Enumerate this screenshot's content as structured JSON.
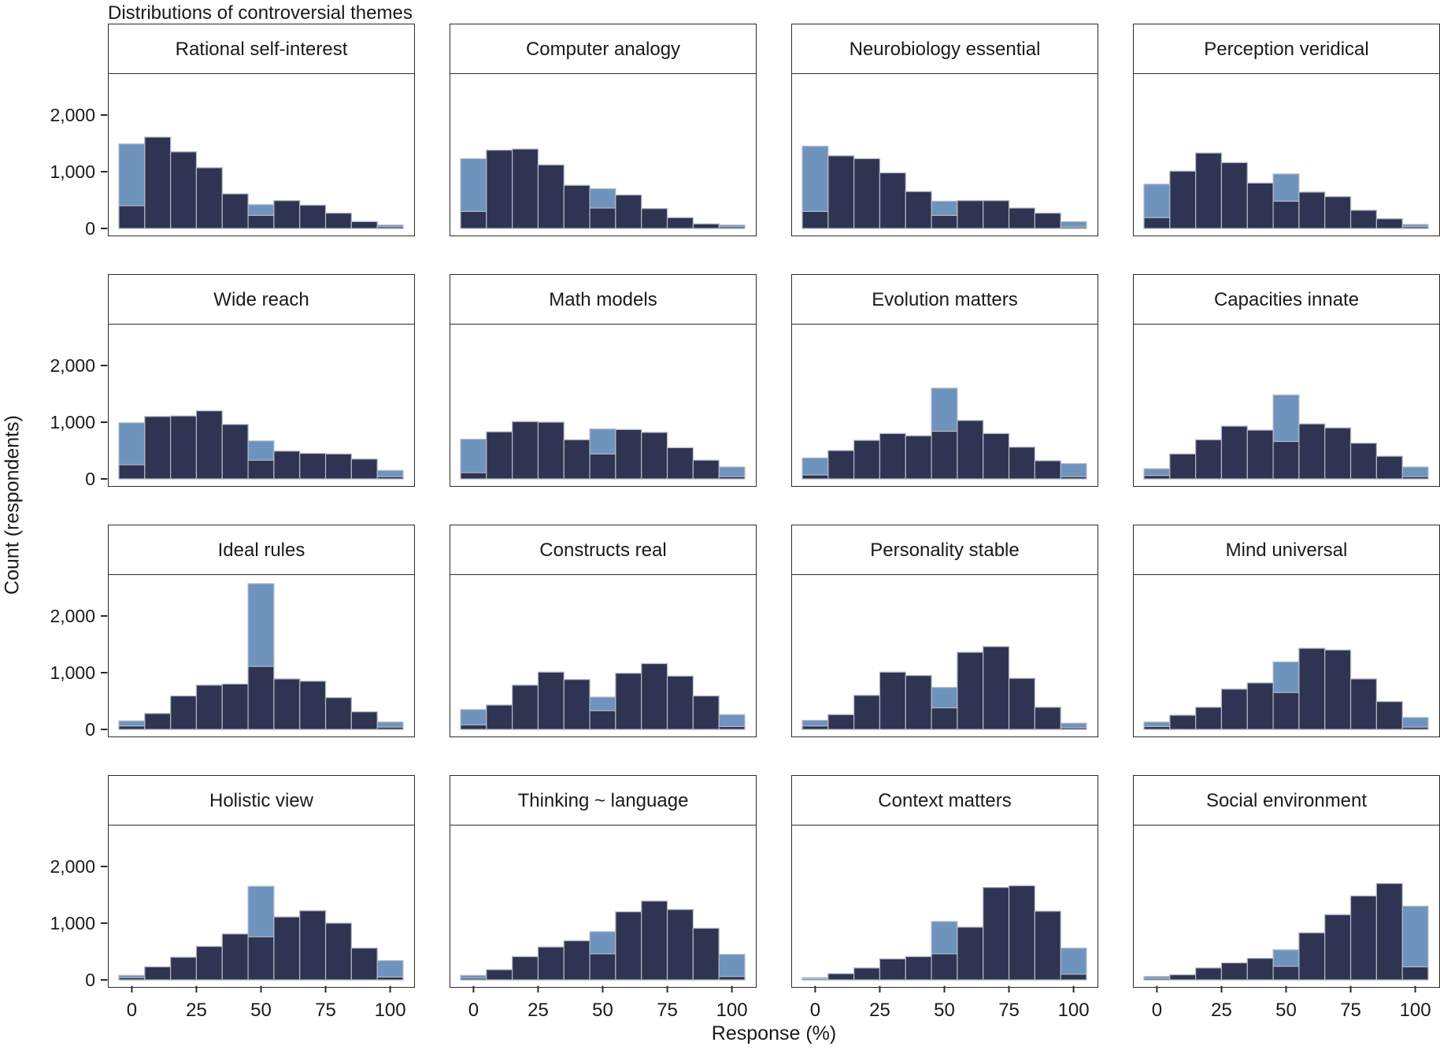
{
  "title": "Distributions of controversial themes",
  "colors": {
    "light_blue": "#6E93BD",
    "dark_navy": "#2E3451",
    "bar_edge": "#B5BAC5",
    "panel_border": "#2B2B2B",
    "text": "#1A1A1A"
  },
  "chart_data": {
    "type": "bar",
    "subtype": "overlaid-histogram-grid",
    "grid": {
      "rows": 4,
      "cols": 4
    },
    "xlabel": "Response (%)",
    "ylabel": "Count (respondents)",
    "x_bin_centers": [
      0,
      10,
      20,
      30,
      40,
      50,
      60,
      70,
      80,
      90,
      100
    ],
    "bin_width": 10,
    "ylim": [
      0,
      2750
    ],
    "yticks": [
      0,
      1000,
      2000
    ],
    "ytick_labels": [
      "0",
      "1,000",
      "2,000"
    ],
    "xticks": [
      0,
      25,
      50,
      75,
      100
    ],
    "xtick_labels": [
      "0",
      "25",
      "50",
      "75",
      "100"
    ],
    "legend": "none",
    "series_colors": {
      "light_blue": "#6E93BD",
      "dark_navy": "#2E3451"
    },
    "panels": [
      {
        "title": "Rational self-interest",
        "series": [
          {
            "name": "light-blue",
            "values": [
              1490,
              1610,
              1350,
              1070,
              610,
              420,
              490,
              410,
              270,
              120,
              60
            ]
          },
          {
            "name": "dark-navy",
            "values": [
              400,
              1610,
              1350,
              1070,
              610,
              230,
              490,
              410,
              270,
              120,
              30
            ]
          }
        ]
      },
      {
        "title": "Computer analogy",
        "series": [
          {
            "name": "light-blue",
            "values": [
              1230,
              1380,
              1400,
              1120,
              760,
              700,
              590,
              350,
              190,
              80,
              60
            ]
          },
          {
            "name": "dark-navy",
            "values": [
              300,
              1380,
              1400,
              1120,
              760,
              360,
              590,
              350,
              190,
              80,
              30
            ]
          }
        ]
      },
      {
        "title": "Neurobiology essential",
        "series": [
          {
            "name": "light-blue",
            "values": [
              1450,
              1280,
              1230,
              980,
              650,
              480,
              490,
              490,
              360,
              270,
              120
            ]
          },
          {
            "name": "dark-navy",
            "values": [
              300,
              1280,
              1230,
              980,
              650,
              230,
              490,
              490,
              360,
              270,
              25
            ]
          }
        ]
      },
      {
        "title": "Perception veridical",
        "series": [
          {
            "name": "light-blue",
            "values": [
              780,
              1010,
              1330,
              1160,
              800,
              960,
              640,
              560,
              320,
              170,
              70
            ]
          },
          {
            "name": "dark-navy",
            "values": [
              190,
              1010,
              1330,
              1160,
              800,
              480,
              640,
              560,
              320,
              170,
              30
            ]
          }
        ]
      },
      {
        "title": "Wide reach",
        "series": [
          {
            "name": "light-blue",
            "values": [
              990,
              1100,
              1110,
              1200,
              960,
              670,
              490,
              450,
              440,
              350,
              150
            ]
          },
          {
            "name": "dark-navy",
            "values": [
              250,
              1100,
              1110,
              1200,
              960,
              330,
              490,
              450,
              440,
              350,
              40
            ]
          }
        ]
      },
      {
        "title": "Math models",
        "series": [
          {
            "name": "light-blue",
            "values": [
              700,
              830,
              1010,
              1000,
              690,
              880,
              870,
              820,
              550,
              330,
              210
            ]
          },
          {
            "name": "dark-navy",
            "values": [
              110,
              830,
              1010,
              1000,
              690,
              440,
              870,
              820,
              550,
              330,
              40
            ]
          }
        ]
      },
      {
        "title": "Evolution matters",
        "series": [
          {
            "name": "light-blue",
            "values": [
              370,
              500,
              680,
              800,
              760,
              1600,
              1030,
              800,
              560,
              320,
              270
            ]
          },
          {
            "name": "dark-navy",
            "values": [
              70,
              500,
              680,
              800,
              760,
              840,
              1030,
              800,
              560,
              320,
              40
            ]
          }
        ]
      },
      {
        "title": "Capacities innate",
        "series": [
          {
            "name": "light-blue",
            "values": [
              180,
              440,
              690,
              930,
              860,
              1480,
              970,
              900,
              630,
              400,
              210
            ]
          },
          {
            "name": "dark-navy",
            "values": [
              60,
              440,
              690,
              930,
              860,
              660,
              970,
              900,
              630,
              400,
              40
            ]
          }
        ]
      },
      {
        "title": "Ideal rules",
        "series": [
          {
            "name": "light-blue",
            "values": [
              150,
              280,
              590,
              780,
              800,
              2570,
              890,
              850,
              560,
              310,
              130
            ]
          },
          {
            "name": "dark-navy",
            "values": [
              60,
              280,
              590,
              780,
              800,
              1110,
              890,
              850,
              560,
              310,
              40
            ]
          }
        ]
      },
      {
        "title": "Constructs real",
        "series": [
          {
            "name": "light-blue",
            "values": [
              350,
              430,
              780,
              1010,
              880,
              570,
              990,
              1160,
              940,
              590,
              260
            ]
          },
          {
            "name": "dark-navy",
            "values": [
              80,
              430,
              780,
              1010,
              880,
              330,
              990,
              1160,
              940,
              590,
              50
            ]
          }
        ]
      },
      {
        "title": "Personality stable",
        "series": [
          {
            "name": "light-blue",
            "values": [
              160,
              260,
              600,
              1010,
              950,
              740,
              1360,
              1460,
              900,
              390,
              110
            ]
          },
          {
            "name": "dark-navy",
            "values": [
              60,
              260,
              600,
              1010,
              950,
              380,
              1360,
              1460,
              900,
              390,
              30
            ]
          }
        ]
      },
      {
        "title": "Mind universal",
        "series": [
          {
            "name": "light-blue",
            "values": [
              130,
              250,
              390,
              710,
              820,
              1190,
              1430,
              1400,
              890,
              490,
              210
            ]
          },
          {
            "name": "dark-navy",
            "values": [
              50,
              250,
              390,
              710,
              820,
              650,
              1430,
              1400,
              890,
              490,
              40
            ]
          }
        ]
      },
      {
        "title": "Holistic view",
        "series": [
          {
            "name": "light-blue",
            "values": [
              80,
              230,
              400,
              590,
              810,
              1650,
              1110,
              1220,
              1000,
              560,
              340
            ]
          },
          {
            "name": "dark-navy",
            "values": [
              40,
              230,
              400,
              590,
              810,
              760,
              1110,
              1220,
              1000,
              560,
              50
            ]
          }
        ]
      },
      {
        "title": "Thinking ~ language",
        "series": [
          {
            "name": "light-blue",
            "values": [
              80,
              180,
              410,
              580,
              690,
              850,
              1200,
              1390,
              1240,
              910,
              450
            ]
          },
          {
            "name": "dark-navy",
            "values": [
              30,
              180,
              410,
              580,
              690,
              460,
              1200,
              1390,
              1240,
              910,
              60
            ]
          }
        ]
      },
      {
        "title": "Context matters",
        "series": [
          {
            "name": "light-blue",
            "values": [
              40,
              110,
              210,
              370,
              410,
              1030,
              930,
              1630,
              1660,
              1210,
              560
            ]
          },
          {
            "name": "dark-navy",
            "values": [
              20,
              110,
              210,
              370,
              410,
              460,
              930,
              1630,
              1660,
              1210,
              100
            ]
          }
        ]
      },
      {
        "title": "Social environment",
        "series": [
          {
            "name": "light-blue",
            "values": [
              60,
              90,
              210,
              300,
              380,
              530,
              830,
              1150,
              1480,
              1700,
              1300
            ]
          },
          {
            "name": "dark-navy",
            "values": [
              25,
              90,
              210,
              300,
              380,
              240,
              830,
              1150,
              1480,
              1700,
              230
            ]
          }
        ]
      }
    ]
  }
}
